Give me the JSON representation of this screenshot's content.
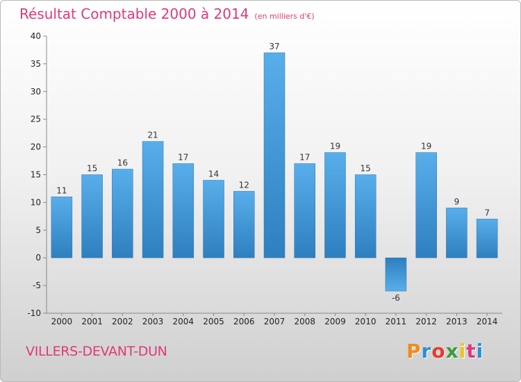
{
  "chart_data": {
    "type": "bar",
    "title": "Résultat Comptable 2000 à 2014",
    "subtitle": "(en milliers d'€)",
    "categories": [
      "2000",
      "2001",
      "2002",
      "2003",
      "2004",
      "2005",
      "2006",
      "2007",
      "2008",
      "2009",
      "2010",
      "2011",
      "2012",
      "2013",
      "2014"
    ],
    "values": [
      11,
      15,
      16,
      21,
      17,
      14,
      12,
      37,
      17,
      19,
      15,
      -6,
      19,
      9,
      7
    ],
    "data_labels": [
      "11",
      "15",
      "16",
      "21",
      "17",
      "14",
      "12",
      "37",
      "17",
      "19",
      "15",
      "-6",
      "19",
      "9",
      "7"
    ],
    "ylim": [
      -10,
      40
    ],
    "yticks": [
      -10,
      -5,
      0,
      5,
      10,
      15,
      20,
      25,
      30,
      35,
      40
    ],
    "ytick_labels": [
      "-10",
      "-5",
      "0",
      "5",
      "10",
      "15",
      "20",
      "25",
      "30",
      "35",
      "40"
    ],
    "xlabel": "",
    "ylabel": "",
    "grid": false,
    "bar_color": "#3f95d8"
  },
  "footer": {
    "town": "VILLERS-DEVANT-DUN",
    "brand_letters": [
      "P",
      "r",
      "o",
      "x",
      "i",
      "t",
      "i"
    ],
    "brand_colors": [
      "#f08b1c",
      "#2a8fd6",
      "#e63b2e",
      "#3a9d3a",
      "#f0c21c",
      "#e0387a",
      "#2a8fd6"
    ]
  }
}
